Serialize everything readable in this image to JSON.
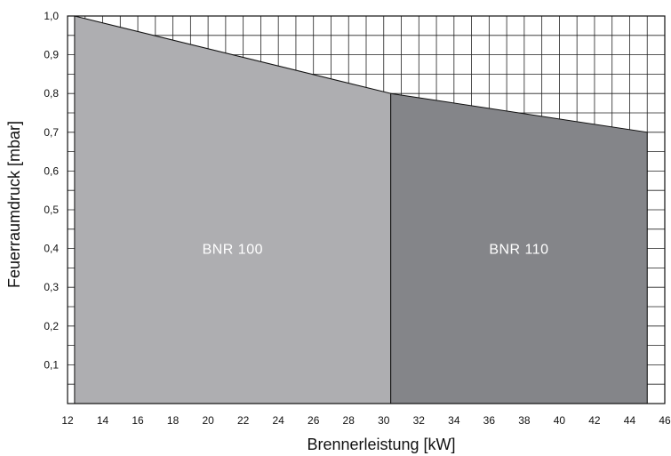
{
  "chart_data": {
    "type": "area",
    "xlabel": "Brennerleistung [kW]",
    "ylabel": "Feuerraumdruck [mbar]",
    "xlim": [
      12,
      46
    ],
    "ylim": [
      0,
      1.0
    ],
    "x_ticks": [
      "12",
      "14",
      "16",
      "18",
      "20",
      "22",
      "24",
      "26",
      "28",
      "30",
      "32",
      "34",
      "36",
      "38",
      "40",
      "42",
      "44",
      "46"
    ],
    "y_ticks": [
      "0,1",
      "0,2",
      "0,3",
      "0,4",
      "0,5",
      "0,6",
      "0,7",
      "0,8",
      "0,9",
      "1,0"
    ],
    "grid": true,
    "series": [
      {
        "name": "BNR 100",
        "color": "#aeaeb1",
        "points": [
          [
            12.4,
            1.0
          ],
          [
            30.4,
            0.8
          ]
        ]
      },
      {
        "name": "BNR 110",
        "color": "#848589",
        "points": [
          [
            30.4,
            0.8
          ],
          [
            45,
            0.7
          ]
        ]
      }
    ]
  }
}
